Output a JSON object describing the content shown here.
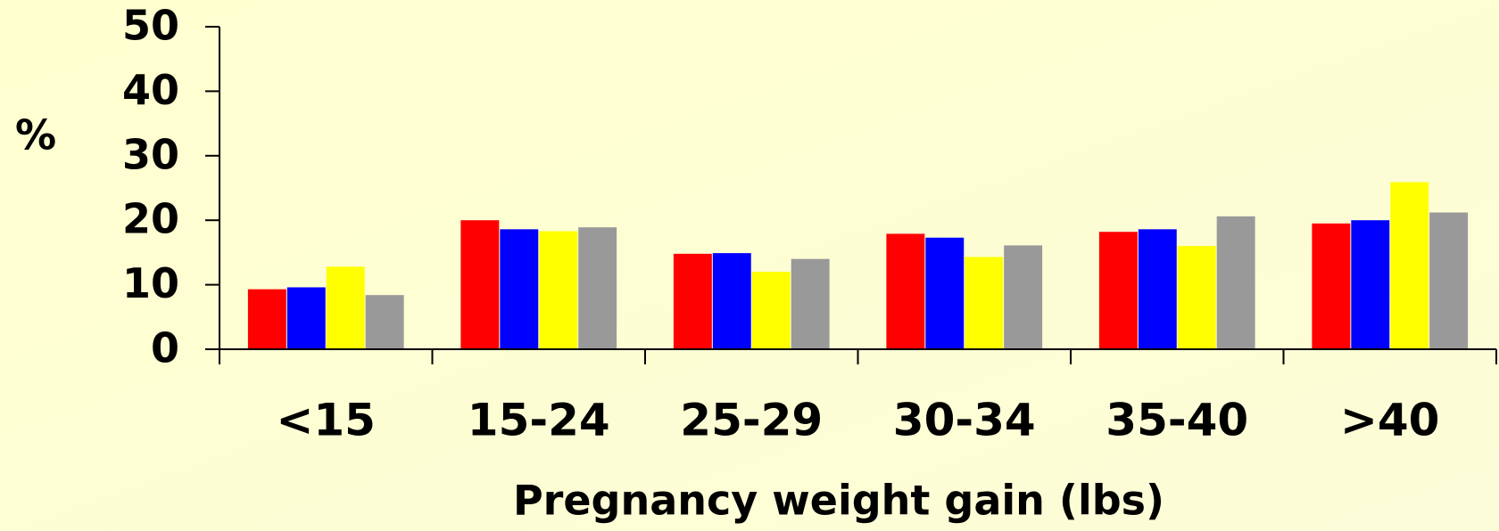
{
  "chart_data": {
    "type": "bar",
    "y_label": "%",
    "x_label": "Pregnancy weight gain (lbs)",
    "categories": [
      "<15",
      "15-24",
      "25-29",
      "30-34",
      "35-40",
      ">40"
    ],
    "series": [
      {
        "color": "#ff0000",
        "values": [
          9.3,
          20.0,
          14.8,
          17.9,
          18.2,
          19.5
        ]
      },
      {
        "color": "#0000ff",
        "values": [
          9.6,
          18.6,
          14.9,
          17.3,
          18.6,
          20.0
        ]
      },
      {
        "color": "#ffff00",
        "values": [
          12.8,
          18.3,
          12.0,
          14.3,
          16.0,
          25.9
        ]
      },
      {
        "color": "#999999",
        "values": [
          8.4,
          18.9,
          14.0,
          16.1,
          20.6,
          21.2
        ]
      }
    ],
    "ylim": [
      0,
      50
    ],
    "yticks": [
      0,
      10,
      20,
      30,
      40,
      50
    ],
    "grid": false
  }
}
